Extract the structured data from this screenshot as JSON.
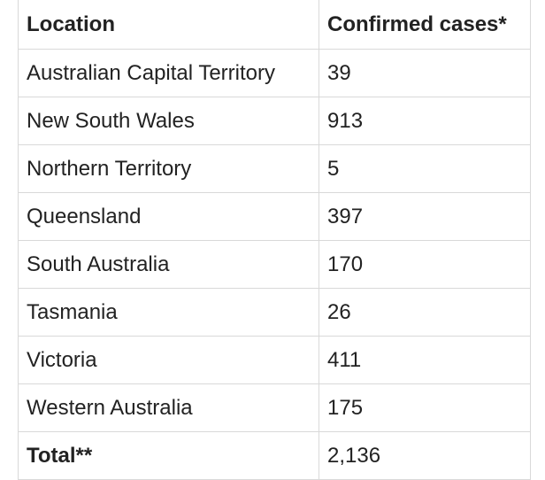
{
  "table": {
    "header": [
      "Location",
      "Confirmed cases*"
    ],
    "rows": [
      [
        "Australian Capital Territory",
        "39"
      ],
      [
        "New South Wales",
        "913"
      ],
      [
        "Northern Territory",
        "5"
      ],
      [
        "Queensland",
        "397"
      ],
      [
        "South Australia",
        "170"
      ],
      [
        "Tasmania",
        "26"
      ],
      [
        "Victoria",
        "411"
      ],
      [
        "Western Australia",
        "175"
      ]
    ],
    "total": [
      "Total**",
      "2,136"
    ]
  }
}
